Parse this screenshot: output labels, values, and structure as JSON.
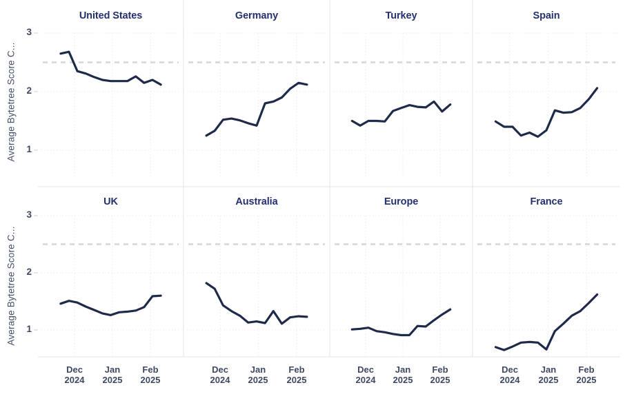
{
  "axis": {
    "y_label": "Average Bytetree Score C...",
    "y_ticks": [
      "3",
      "2",
      "1"
    ],
    "x_ticks": [
      {
        "month": "Dec",
        "year": "2024"
      },
      {
        "month": "Jan",
        "year": "2025"
      },
      {
        "month": "Feb",
        "year": "2025"
      }
    ]
  },
  "colors": {
    "line": "#1f2949",
    "title": "#242f6f",
    "tick_label": "#3f4861",
    "reference_dash": "#d9d9d9",
    "gridline": "#eaeaea",
    "separator": "#e4e4e4",
    "tick_mark": "#cfcfcf"
  },
  "chart_data": {
    "type": "line",
    "layout": "small multiples, 2 rows x 4 columns, shared axes",
    "title": "",
    "xlabel": "",
    "ylabel": "Average Bytetree Score C...",
    "ylim": [
      0.5,
      3.1
    ],
    "y_tick_values": [
      1,
      2,
      3
    ],
    "x_tick_labels": [
      "Dec 2024",
      "Jan 2025",
      "Feb 2025"
    ],
    "x_note": "13 evenly spaced (weekly) observations from late Nov 2024 to mid Feb 2025",
    "reference_line_y": 2.5,
    "grid": true,
    "panels": [
      {
        "title": "United States",
        "row": 0,
        "col": 0,
        "values": [
          2.65,
          2.68,
          2.35,
          2.31,
          2.25,
          2.2,
          2.18,
          2.18,
          2.18,
          2.26,
          2.15,
          2.2,
          2.12
        ]
      },
      {
        "title": "Germany",
        "row": 0,
        "col": 1,
        "values": [
          1.25,
          1.33,
          1.52,
          1.54,
          1.51,
          1.46,
          1.42,
          1.8,
          1.83,
          1.9,
          2.05,
          2.15,
          2.12
        ]
      },
      {
        "title": "Turkey",
        "row": 0,
        "col": 2,
        "values": [
          1.5,
          1.42,
          1.5,
          1.5,
          1.49,
          1.67,
          1.72,
          1.77,
          1.74,
          1.73,
          1.83,
          1.66,
          1.78
        ]
      },
      {
        "title": "Spain",
        "row": 0,
        "col": 3,
        "values": [
          1.49,
          1.4,
          1.4,
          1.25,
          1.3,
          1.23,
          1.34,
          1.68,
          1.64,
          1.65,
          1.72,
          1.87,
          2.06
        ]
      },
      {
        "title": "UK",
        "row": 1,
        "col": 0,
        "values": [
          1.46,
          1.51,
          1.48,
          1.41,
          1.35,
          1.29,
          1.26,
          1.31,
          1.32,
          1.34,
          1.4,
          1.59,
          1.6
        ]
      },
      {
        "title": "Australia",
        "row": 1,
        "col": 1,
        "values": [
          1.82,
          1.72,
          1.43,
          1.33,
          1.25,
          1.13,
          1.15,
          1.12,
          1.33,
          1.11,
          1.22,
          1.24,
          1.23
        ]
      },
      {
        "title": "Europe",
        "row": 1,
        "col": 2,
        "values": [
          1.01,
          1.02,
          1.04,
          0.98,
          0.96,
          0.93,
          0.91,
          0.91,
          1.07,
          1.06,
          1.17,
          1.27,
          1.36
        ]
      },
      {
        "title": "France",
        "row": 1,
        "col": 3,
        "values": [
          0.7,
          0.65,
          0.71,
          0.78,
          0.79,
          0.78,
          0.66,
          0.98,
          1.11,
          1.25,
          1.33,
          1.47,
          1.62
        ]
      }
    ]
  }
}
